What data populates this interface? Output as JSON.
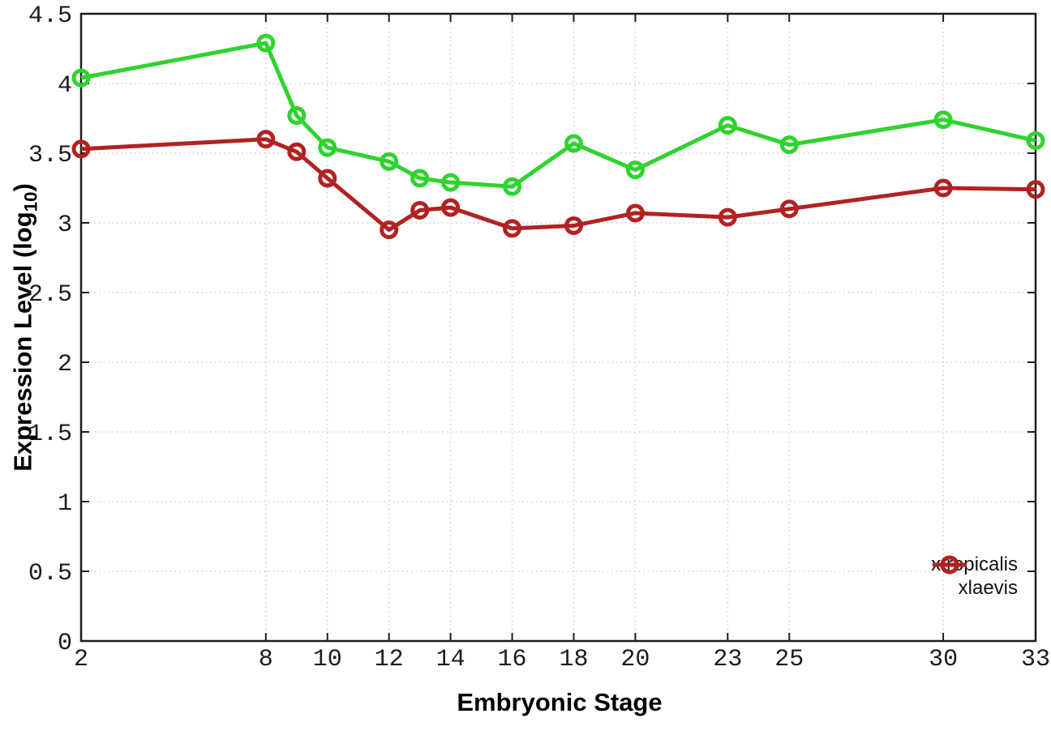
{
  "chart_data": {
    "type": "line",
    "title": "",
    "xlabel": "Embryonic Stage",
    "ylabel": {
      "prefix": "Expression Level (log",
      "sub": "10",
      "suffix": ")"
    },
    "xlim": [
      2,
      33
    ],
    "ylim": [
      0,
      4.5
    ],
    "xticks": [
      "2",
      "8",
      "10",
      "12",
      "14",
      "16",
      "18",
      "20",
      "23",
      "25",
      "30",
      "33"
    ],
    "yticks": [
      "0",
      "0.5",
      "1",
      "1.5",
      "2",
      "2.5",
      "3",
      "3.5",
      "4",
      "4.5"
    ],
    "grid": "dotted",
    "legend_position": "bottom-right-inside",
    "x": [
      2,
      8,
      9,
      10,
      12,
      13,
      14,
      16,
      18,
      20,
      23,
      25,
      30,
      33
    ],
    "series": [
      {
        "name": "xtropicalis",
        "color": "#2fd32f",
        "marker": "open-circle",
        "values": [
          4.04,
          4.29,
          3.77,
          3.54,
          3.44,
          3.32,
          3.29,
          3.26,
          3.57,
          3.38,
          3.7,
          3.56,
          3.74,
          3.59
        ]
      },
      {
        "name": "xlaevis",
        "color": "#b22222",
        "marker": "open-circle",
        "values": [
          3.53,
          3.6,
          3.51,
          3.32,
          2.95,
          3.09,
          3.11,
          2.96,
          2.98,
          3.07,
          3.04,
          3.1,
          3.25,
          3.24
        ]
      }
    ],
    "colors": {
      "grid": "#c8c8c8",
      "axis": "#1c1c1c",
      "text": "#000000"
    }
  }
}
